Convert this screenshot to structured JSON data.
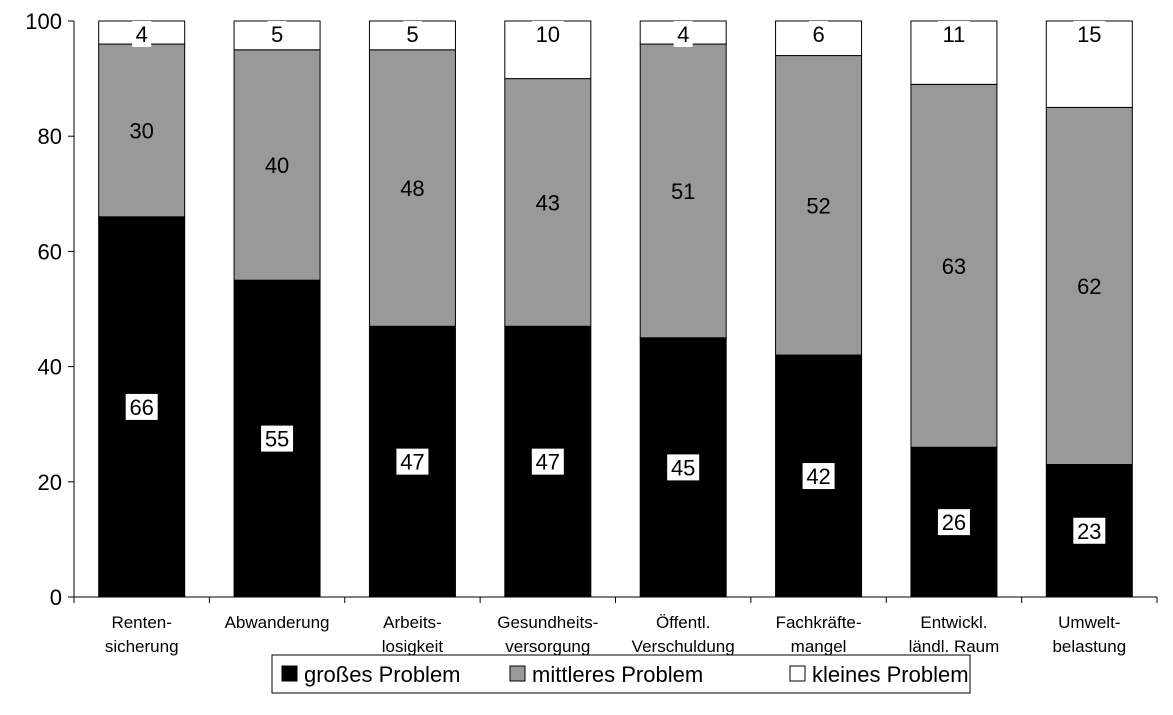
{
  "chart_data": {
    "type": "bar",
    "stacked": true,
    "title": "",
    "xlabel": "",
    "ylabel": "",
    "ylim": [
      0,
      100
    ],
    "yticks": [
      "0",
      "20",
      "40",
      "60",
      "80",
      "100"
    ],
    "grid": false,
    "legend_position": "bottom",
    "categories": [
      [
        "Renten-",
        "sicherung"
      ],
      [
        "Abwanderung"
      ],
      [
        "Arbeits-",
        "losigkeit"
      ],
      [
        "Gesundheits-",
        "versorgung"
      ],
      [
        "Öffentl.",
        "Verschuldung"
      ],
      [
        "Fachkräfte-",
        "mangel"
      ],
      [
        "Entwickl.",
        "ländl. Raum"
      ],
      [
        "Umwelt-",
        "belastung"
      ]
    ],
    "series": [
      {
        "name": "großes Problem",
        "color": "#000000",
        "values": [
          66,
          55,
          47,
          47,
          45,
          42,
          26,
          23
        ]
      },
      {
        "name": "mittleres Problem",
        "color": "#999999",
        "values": [
          30,
          40,
          48,
          43,
          51,
          52,
          63,
          62
        ]
      },
      {
        "name": "kleines Problem",
        "color": "#ffffff",
        "values": [
          4,
          5,
          5,
          10,
          4,
          6,
          11,
          15
        ]
      }
    ]
  }
}
